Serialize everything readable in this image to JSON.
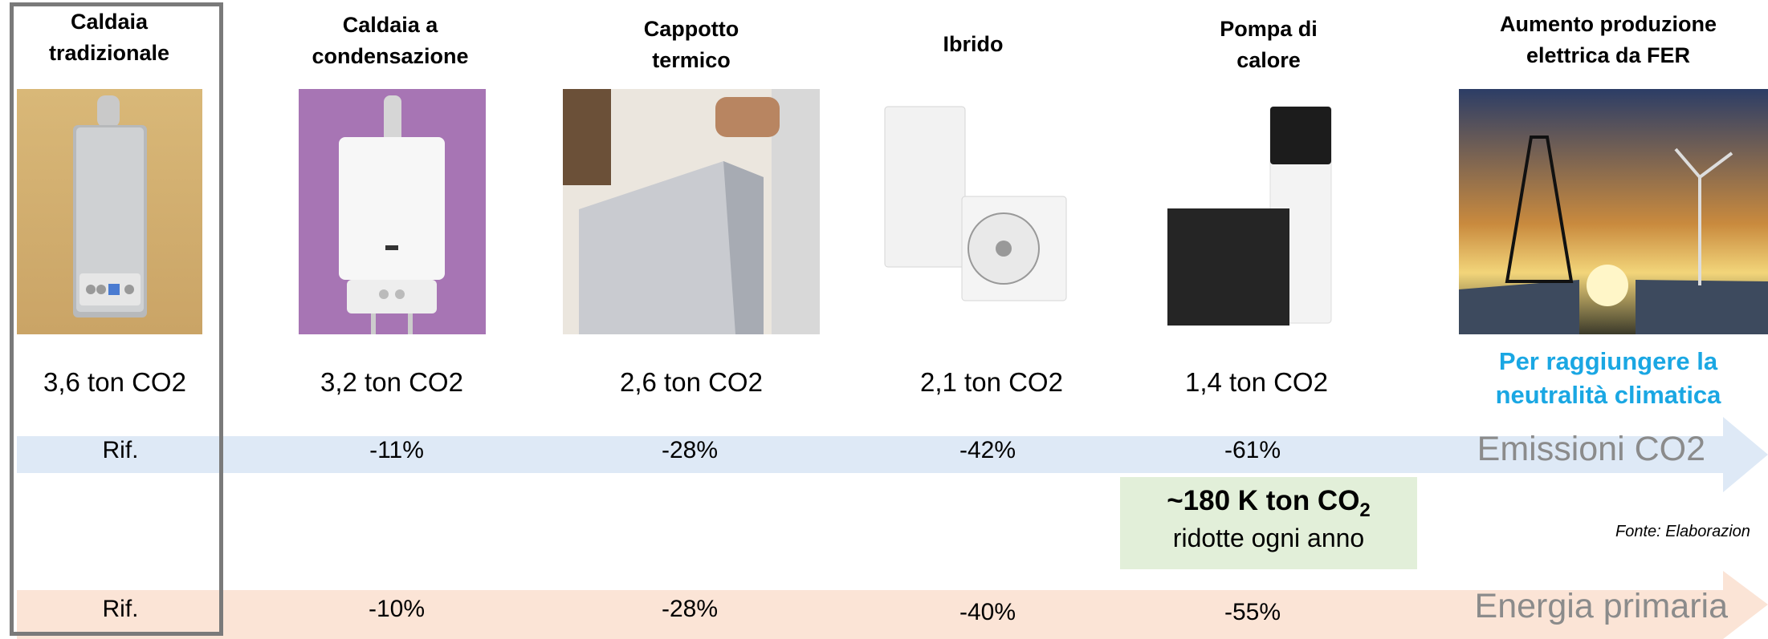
{
  "columns": [
    {
      "title_line1": "Caldaia",
      "title_line2": "tradizionale",
      "emissions": "3,6 ton CO2",
      "co2_change": "Rif.",
      "energy_change": "Rif."
    },
    {
      "title_line1": "Caldaia a",
      "title_line2": "condensazione",
      "emissions": "3,2 ton CO2",
      "co2_change": "-11%",
      "energy_change": "-10%"
    },
    {
      "title_line1": "Cappotto",
      "title_line2": "termico",
      "emissions": "2,6 ton CO2",
      "co2_change": "-28%",
      "energy_change": "-28%"
    },
    {
      "title_line1": "Ibrido",
      "title_line2": "",
      "emissions": "2,1 ton CO2",
      "co2_change": "-42%",
      "energy_change": "-40%"
    },
    {
      "title_line1": "Pompa di",
      "title_line2": "calore",
      "emissions": "1,4 ton CO2",
      "co2_change": "-61%",
      "energy_change": "-55%"
    },
    {
      "title_line1": "Aumento produzione",
      "title_line2": "elettrica da FER",
      "emissions_line1": "Per raggiungere la",
      "emissions_line2": "neutralità climatica"
    }
  ],
  "arrows": {
    "co2_label": "Emissioni CO2",
    "energy_label": "Energia primaria"
  },
  "highlight": {
    "value": "~180 K ton CO",
    "subscript": "2",
    "caption": "ridotte ogni anno"
  },
  "source_note": "Fonte: Elaborazion",
  "colors": {
    "co2_arrow": "#dee9f6",
    "energy_arrow": "#fbe4d6",
    "highlight_box": "#e2efd9",
    "accent_text": "#1aa7e3",
    "frame": "#7a7a7a"
  }
}
